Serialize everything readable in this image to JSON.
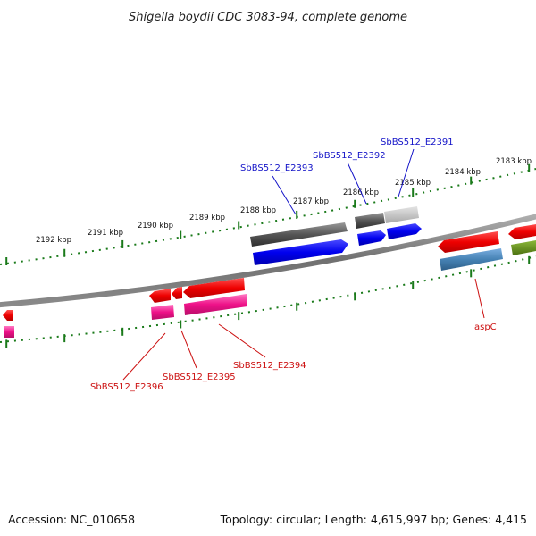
{
  "title": "Shigella boydii CDC 3083-94, complete genome",
  "footer": {
    "accession": "Accession: NC_010658",
    "summary": "Topology: circular; Length: 4,615,997 bp; Genes: 4,415"
  },
  "ticks": [
    {
      "label": "2192 kbp"
    },
    {
      "label": "2191 kbp"
    },
    {
      "label": "2190 kbp"
    },
    {
      "label": "2189 kbp"
    },
    {
      "label": "2188 kbp"
    },
    {
      "label": "2187 kbp"
    },
    {
      "label": "2186 kbp"
    },
    {
      "label": "2185 kbp"
    },
    {
      "label": "2184 kbp"
    },
    {
      "label": "2183 kbp"
    }
  ],
  "gene_labels": [
    {
      "name": "SbBS512_E2393",
      "color": "#1414c8"
    },
    {
      "name": "SbBS512_E2392",
      "color": "#1414c8"
    },
    {
      "name": "SbBS512_E2391",
      "color": "#1414c8"
    },
    {
      "name": "SbBS512_E2394",
      "color": "#cc1010"
    },
    {
      "name": "SbBS512_E2395",
      "color": "#cc1010"
    },
    {
      "name": "SbBS512_E2396",
      "color": "#cc1010"
    },
    {
      "name": "aspC",
      "color": "#cc1010"
    }
  ],
  "colors": {
    "backbone": "#7a7a7a",
    "tick": "#1a7a1a",
    "forward_gene": "#0000ee",
    "reverse_gene": "#ee0000",
    "rna_forward": "#555555",
    "rna_reverse": "#ee1188",
    "blue_label": "#1414c8",
    "red_label": "#cc1010"
  }
}
